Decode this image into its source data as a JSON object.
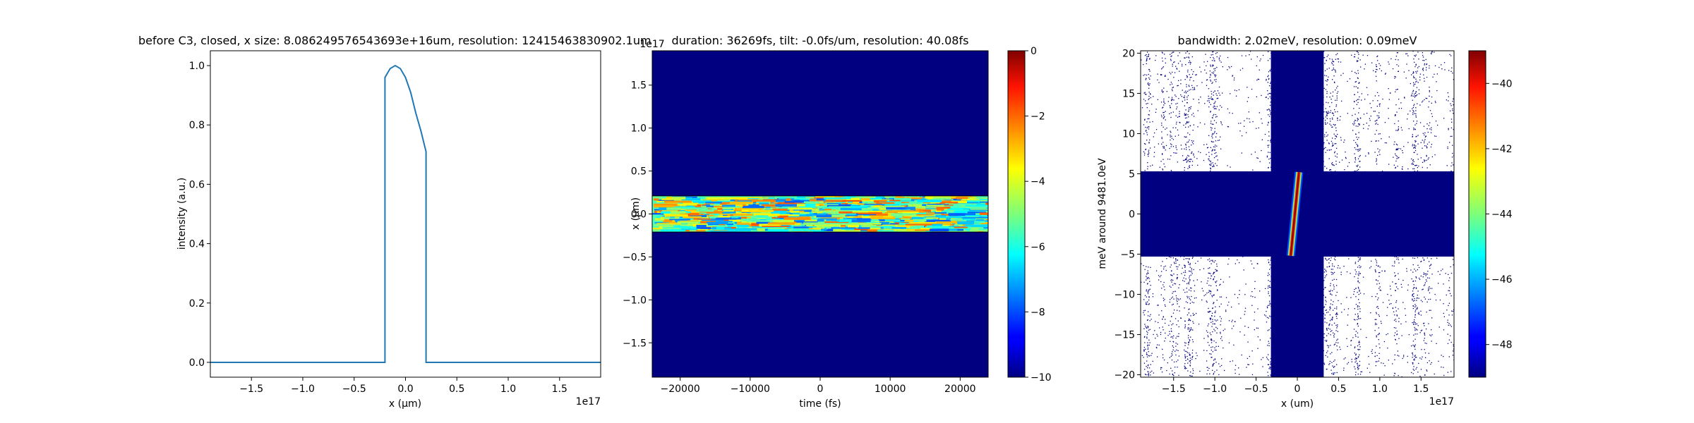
{
  "figure": {
    "background": "#ffffff",
    "axis_color": "#000000"
  },
  "chart_data": [
    {
      "type": "line",
      "title": "before C3, closed, x size: 8.086249576543693e+16um, resolution: 12415463830902.1um",
      "xlabel": "x (μm)",
      "ylabel": "intensity (a.u.)",
      "xlim": [
        -1.9e+17,
        1.9e+17
      ],
      "ylim": [
        -0.05,
        1.05
      ],
      "x_offset_text": "1e17",
      "x_ticks": [
        -1.5,
        -1.0,
        -0.5,
        0.0,
        0.5,
        1.0,
        1.5
      ],
      "x_tick_labels": [
        "−1.5",
        "−1.0",
        "−0.5",
        "0.0",
        "0.5",
        "1.0",
        "1.5"
      ],
      "y_ticks": [
        0.0,
        0.2,
        0.4,
        0.6,
        0.8,
        1.0
      ],
      "y_tick_labels": [
        "0.0",
        "0.2",
        "0.4",
        "0.6",
        "0.8",
        "1.0"
      ],
      "grid": false,
      "series": [
        {
          "color": "#1f77b4",
          "x": [
            -1.9e+17,
            -2e+16,
            -2e+16,
            -1.5e+16,
            -1e+16,
            -5000000000000000.0,
            0.0,
            5000000000000000.0,
            1e+16,
            1.5e+16,
            2e+16,
            2e+16,
            1.9e+17
          ],
          "y": [
            0.0,
            0.0,
            0.96,
            0.99,
            1.0,
            0.99,
            0.96,
            0.91,
            0.84,
            0.78,
            0.71,
            0.0,
            0.0
          ]
        }
      ]
    },
    {
      "type": "heatmap",
      "title": "duration: 36269fs, tilt: -0.0fs/um, resolution: 40.08fs",
      "xlabel": "time (fs)",
      "ylabel": "x (μm)",
      "xlim": [
        -24000,
        24000
      ],
      "ylim": [
        -1.9e+17,
        1.9e+17
      ],
      "y_offset_text": "1e17",
      "x_ticks": [
        -20000,
        -10000,
        0,
        10000,
        20000
      ],
      "x_tick_labels": [
        "−20000",
        "−10000",
        "0",
        "10000",
        "20000"
      ],
      "y_ticks": [
        -1.5,
        -1.0,
        -0.5,
        0.0,
        0.5,
        1.0,
        1.5
      ],
      "y_tick_labels": [
        "−1.5",
        "−1.0",
        "−0.5",
        "0.0",
        "0.5",
        "1.0",
        "1.5"
      ],
      "colormap": "jet",
      "background_value": -10,
      "band_x_range": [
        -2.1e+16,
        2.1e+16
      ],
      "band_values": [
        -8,
        -2
      ],
      "colorbar": {
        "range": [
          -10,
          0
        ],
        "ticks": [
          0,
          -2,
          -4,
          -6,
          -8,
          -10
        ],
        "tick_labels": [
          "0",
          "−2",
          "−4",
          "−6",
          "−8",
          "−10"
        ]
      },
      "grid": false
    },
    {
      "type": "scatter",
      "title": "bandwidth: 2.02meV, resolution: 0.09meV",
      "xlabel": "x (um)",
      "ylabel": "meV around 9481.0eV",
      "xlim": [
        -1.9e+17,
        1.9e+17
      ],
      "ylim": [
        -20.3,
        20.3
      ],
      "x_offset_text": "1e17",
      "x_ticks": [
        -1.5,
        -1.0,
        -0.5,
        0.0,
        0.5,
        1.0,
        1.5
      ],
      "x_tick_labels": [
        "−1.5",
        "−1.0",
        "−0.5",
        "0",
        "0.5",
        "1.0",
        "1.5"
      ],
      "y_ticks": [
        -20,
        -15,
        -10,
        -5,
        0,
        5,
        10,
        15,
        20
      ],
      "y_tick_labels": [
        "−20",
        "−15",
        "−10",
        "−5",
        "0",
        "5",
        "10",
        "15",
        "20"
      ],
      "colormap": "jet",
      "background_color": "#000080",
      "solid_band_y": [
        -5.3,
        5.3
      ],
      "solid_band_x": [
        -3.2e+16,
        3.2e+16
      ],
      "speckle_x_ranges": [
        [
          -1.9e+17,
          -3.2e+16
        ],
        [
          3.2e+16,
          1.9e+17
        ]
      ],
      "streak": {
        "x": [
          2000000000000000.0,
          -8000000000000000.0
        ],
        "y": [
          5.2,
          -5.2
        ],
        "value": -38
      },
      "colorbar": {
        "range": [
          -49,
          -39
        ],
        "ticks": [
          -40,
          -42,
          -44,
          -46,
          -48
        ],
        "tick_labels": [
          "−40",
          "−42",
          "−44",
          "−46",
          "−48"
        ]
      },
      "grid": false
    }
  ]
}
